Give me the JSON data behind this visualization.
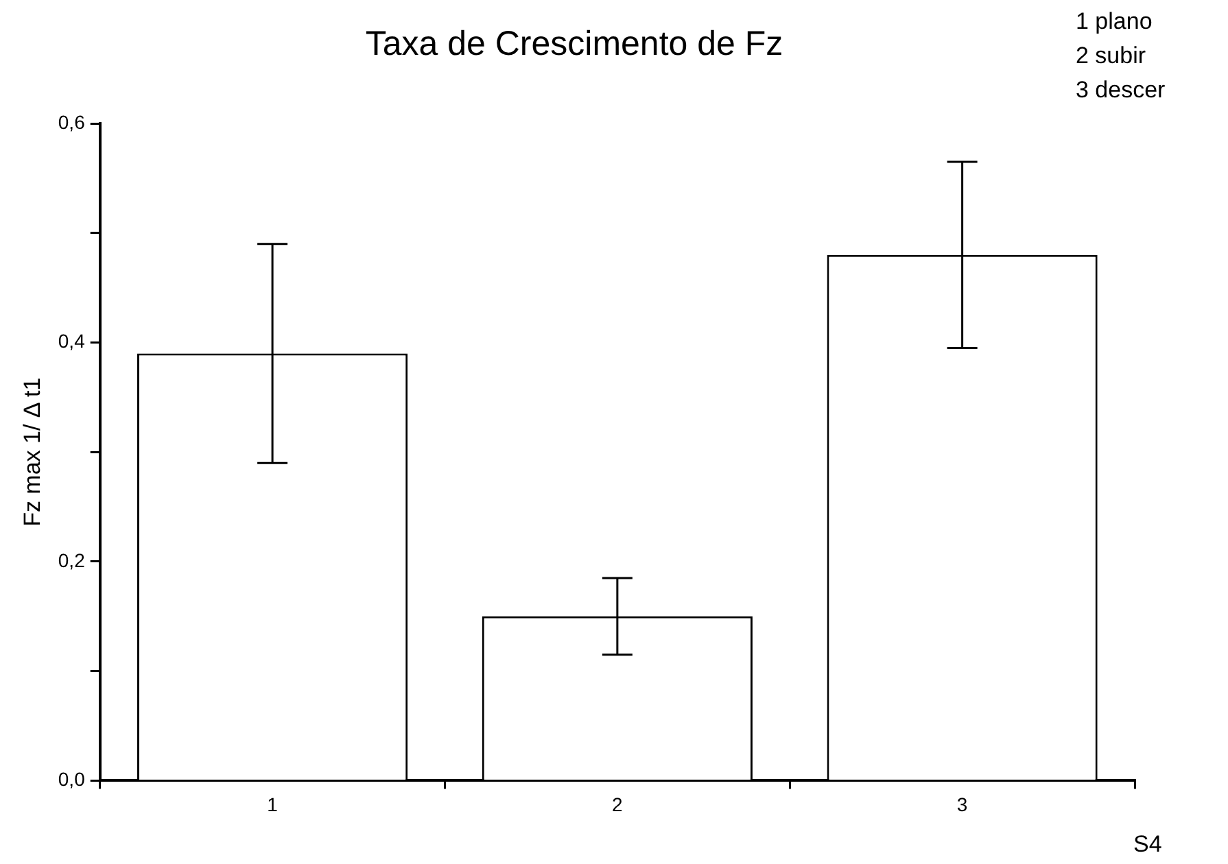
{
  "chart_data": {
    "type": "bar",
    "title": "Taxa de Crescimento de Fz",
    "ylabel": "Fz max 1/ Δ t1",
    "categories": [
      "1",
      "2",
      "3"
    ],
    "values": [
      0.39,
      0.15,
      0.48
    ],
    "errors": [
      0.1,
      0.035,
      0.085
    ],
    "color": "#ffffff",
    "ylim": [
      0,
      0.6
    ],
    "yticks": [
      {
        "value": 0,
        "label": "0,0"
      },
      {
        "value": 0.1,
        "label": null
      },
      {
        "value": 0.2,
        "label": "0,2"
      },
      {
        "value": 0.3,
        "label": null
      },
      {
        "value": 0.4,
        "label": "0,4"
      },
      {
        "value": 0.5,
        "label": null
      },
      {
        "value": 0.6,
        "label": "0,6"
      }
    ],
    "grid": false,
    "legend": false,
    "annotations": [
      "1 plano",
      "2 subir",
      "3 descer",
      "S4"
    ]
  }
}
